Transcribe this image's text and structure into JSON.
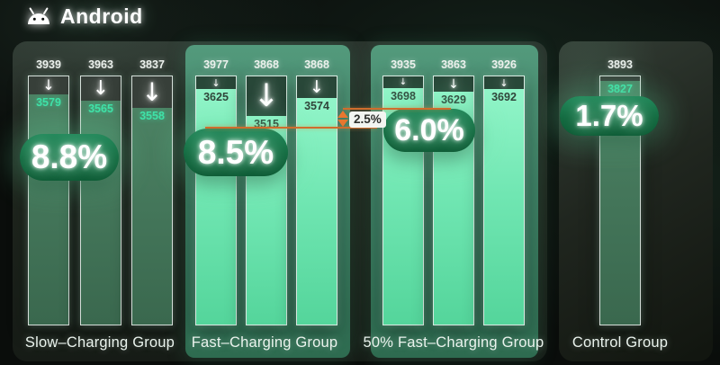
{
  "header": {
    "title": "Android"
  },
  "chart_data": {
    "type": "bar",
    "title": "Android",
    "legend": "initial capacity above each bar, remaining capacity inside bar, capacity-drop percentage on badge",
    "groups": [
      {
        "label": "Slow–Charging Group",
        "drop": "8.8%",
        "bars": [
          {
            "initial": 3939,
            "current": 3579
          },
          {
            "initial": 3963,
            "current": 3565
          },
          {
            "initial": 3837,
            "current": 3558
          }
        ]
      },
      {
        "label": "Fast–Charging Group",
        "drop": "8.5%",
        "bars": [
          {
            "initial": 3977,
            "current": 3625
          },
          {
            "initial": 3868,
            "current": 3515
          },
          {
            "initial": 3868,
            "current": 3574
          }
        ]
      },
      {
        "label": "50% Fast–Charging Group",
        "drop": "6.0%",
        "bars": [
          {
            "initial": 3935,
            "current": 3698
          },
          {
            "initial": 3863,
            "current": 3629
          },
          {
            "initial": 3926,
            "current": 3692
          }
        ]
      },
      {
        "label": "Control Group",
        "drop": "1.7%",
        "bars": [
          {
            "initial": 3893,
            "current": 3827
          }
        ]
      }
    ],
    "annotation": {
      "label": "2.5%"
    },
    "colors": {
      "mint_fill": "#7feec0",
      "dark_fill": "#477e60",
      "panel_green": "#3f8166",
      "badge_green": "#157045",
      "annotation_orange": "#d8732e",
      "value_teal": "#3fe2a8"
    }
  }
}
